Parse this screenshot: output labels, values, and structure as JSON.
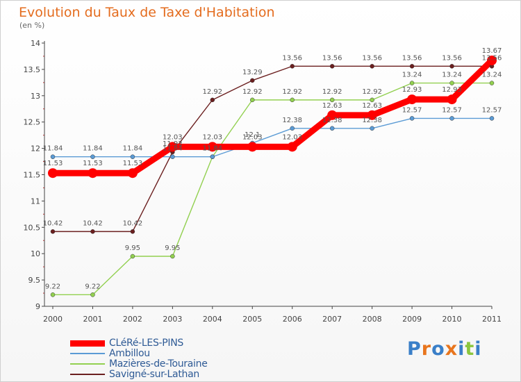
{
  "header": {
    "title": "Evolution du Taux de Taxe d'Habitation",
    "unit": "(en %)"
  },
  "brand": {
    "text": "Proxiti",
    "colors": [
      "#3a7fc8",
      "#e8751d",
      "#3a7fc8",
      "#e8751d",
      "#3a7fc8",
      "#8bc63e",
      "#3a7fc8"
    ]
  },
  "chart_data": {
    "type": "line",
    "x": [
      2000,
      2001,
      2002,
      2003,
      2004,
      2005,
      2006,
      2007,
      2008,
      2009,
      2010,
      2011
    ],
    "ylim": [
      9,
      14
    ],
    "yticks": [
      9,
      9.5,
      10,
      10.5,
      11,
      11.5,
      12,
      12.5,
      13,
      13.5,
      14
    ],
    "grid": false,
    "legend_position": "bottom-left",
    "series": [
      {
        "name": "Savigné-sur-Lathan",
        "color": "#6b1f1f",
        "values": [
          10.42,
          10.42,
          10.42,
          11.93,
          12.92,
          13.29,
          13.56,
          13.56,
          13.56,
          13.56,
          13.56,
          13.56
        ],
        "labels": [
          "10.42",
          "10.42",
          "10.42",
          "11.93",
          "12.92",
          "13.29",
          "13.56",
          "13.56",
          "13.56",
          "13.56",
          "13.56",
          "13.56"
        ]
      },
      {
        "name": "Mazières-de-Touraine",
        "color": "#92d050",
        "values": [
          9.22,
          9.22,
          9.95,
          9.95,
          11.84,
          12.92,
          12.92,
          12.92,
          12.92,
          13.24,
          13.24,
          13.24
        ],
        "labels": [
          "9.22",
          "9.22",
          "9.95",
          "9.95",
          "11.84",
          "12.92",
          "12.92",
          "12.92",
          "12.92",
          "13.24",
          "13.24",
          "13.24"
        ]
      },
      {
        "name": "Ambillou",
        "color": "#5b9bd5",
        "values": [
          11.84,
          11.84,
          11.84,
          11.84,
          11.84,
          12.1,
          12.38,
          12.38,
          12.38,
          12.57,
          12.57,
          12.57
        ],
        "labels": [
          "11.84",
          "11.84",
          "11.84",
          "11.84",
          "11.84",
          "12.1",
          "12.38",
          "12.38",
          "12.38",
          "12.57",
          "12.57",
          "12.57"
        ]
      },
      {
        "name": "CLéRé-LES-PINS",
        "color": "#ff0000",
        "values": [
          11.53,
          11.53,
          11.53,
          12.03,
          12.03,
          12.03,
          12.03,
          12.63,
          12.63,
          12.93,
          12.93,
          13.67
        ],
        "labels": [
          "11.53",
          "11.53",
          "11.53",
          "12.03",
          "12.03",
          "12.03",
          "12.03",
          "12.63",
          "12.63",
          "12.93",
          "12.93",
          "13.67"
        ]
      }
    ]
  }
}
